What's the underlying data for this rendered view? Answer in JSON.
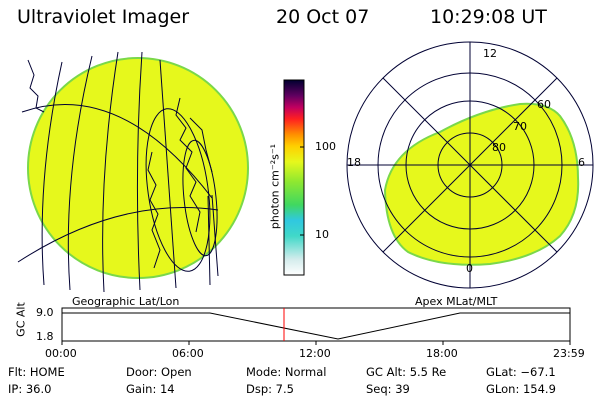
{
  "header": {
    "instrument": "Ultraviolet Imager",
    "date": "20 Oct 07",
    "time": "10:29:08 UT"
  },
  "colors": {
    "aurora_fill": "#e6f81c",
    "aurora_edge": "#7ad84a",
    "line": "#000033",
    "marker": "#ff0000"
  },
  "panels": {
    "geo_label": "Geographic Lat/Lon",
    "apex_label": "Apex MLat/MLT"
  },
  "apex": {
    "mlt_labels": [
      "12",
      "18",
      "6",
      "0"
    ],
    "lat_labels": [
      "60",
      "70",
      "80"
    ]
  },
  "colorbar": {
    "unit_label": "photon cm⁻²s⁻¹",
    "ticks": [
      "100",
      "10"
    ],
    "scale": "log"
  },
  "altitude_plot": {
    "ylabel": "GC Alt",
    "yticks": [
      "9.0",
      "1.8"
    ],
    "xticks": [
      "00:00",
      "06:00",
      "12:00",
      "18:00",
      "23:59"
    ],
    "current_time": "10:29:08"
  },
  "status": {
    "flt": "Flt: HOME",
    "door": "Door: Open",
    "mode": "Mode: Normal",
    "gc_alt": "GC Alt: 5.5 Re",
    "glat": "GLat: −67.1",
    "ip": "IP: 36.0",
    "gain": "Gain: 14",
    "dsp": "Dsp:    7.5",
    "seq": "Seq: 39",
    "glon": "GLon: 154.9"
  }
}
